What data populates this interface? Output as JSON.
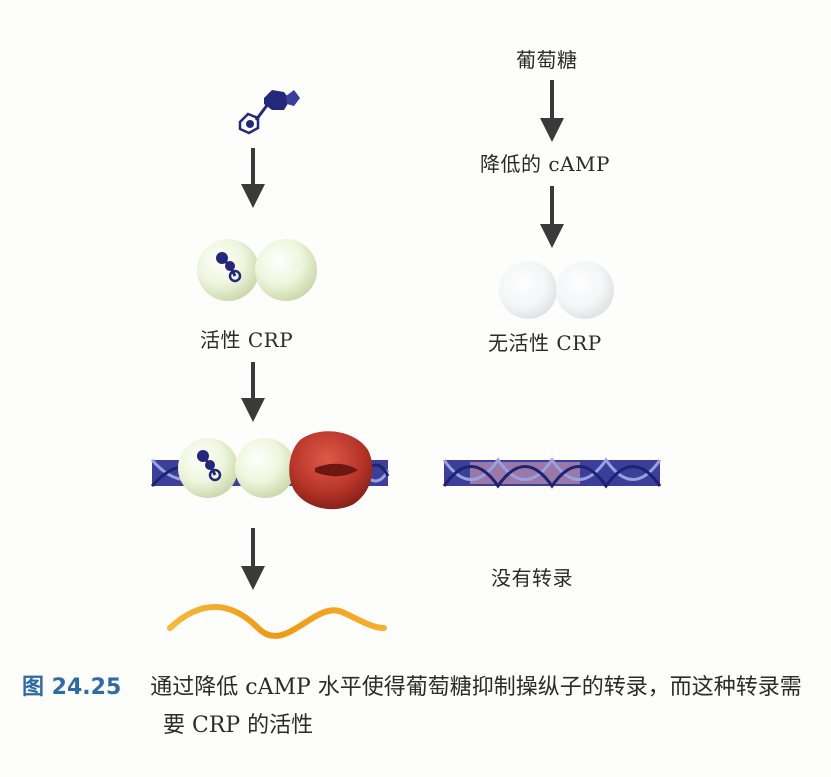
{
  "left": {
    "active_crp": "活性 CRP"
  },
  "right": {
    "glucose": "葡萄糖",
    "lowered_camp": "降低的 cAMP",
    "inactive_crp": "无活性 CRP",
    "no_transcription": "没有转录"
  },
  "caption": {
    "figure_number": "图 24.25",
    "text": "通过降低 cAMP 水平使得葡萄糖抑制操纵子的转录，而这种转录需要 CRP 的活性"
  },
  "colors": {
    "arrow": "#3a3a3a",
    "dna_blue": "#3c3f9a",
    "dna_pink": "#e7a7b5",
    "crp_green": "#eaf2d6",
    "polymerase_red": "#b8352a",
    "mrna_orange": "#f0a020",
    "camp_navy": "#24287a",
    "caption_blue": "#2f6aa6"
  }
}
